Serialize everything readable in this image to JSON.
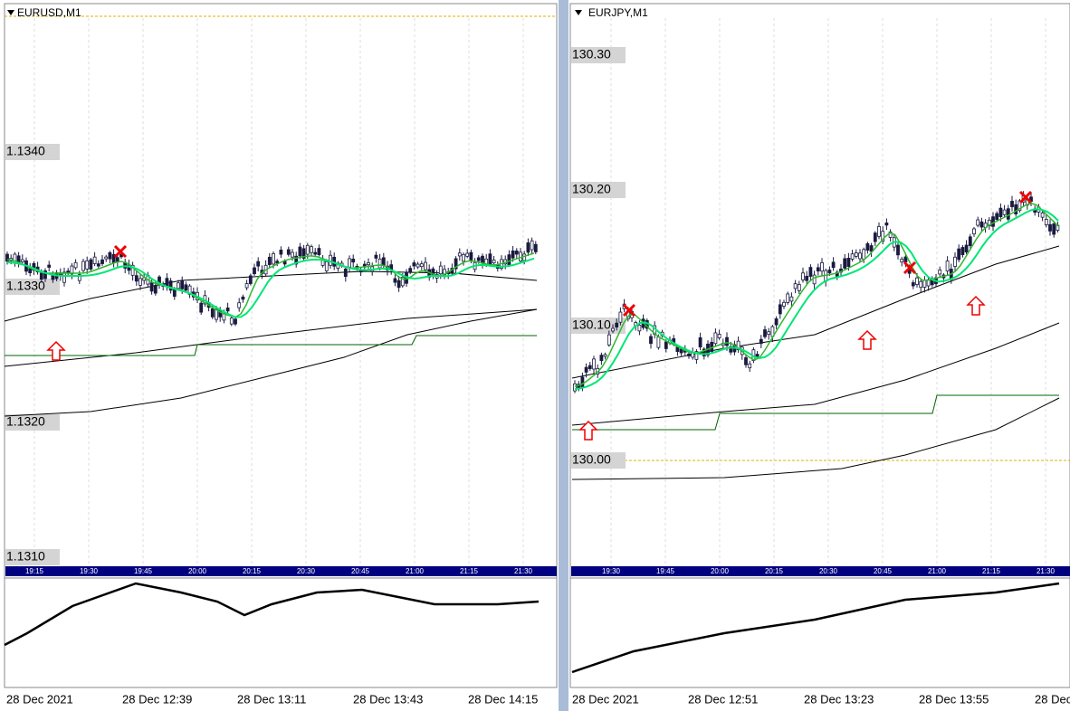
{
  "panels": [
    {
      "symbol": "EURUSD,M1",
      "price_labels": [
        "1.1340",
        "1.1330",
        "1.1320",
        "1.1310"
      ],
      "time_labels": [
        "19:15",
        "19:30",
        "19:45",
        "20:00",
        "20:15",
        "20:30",
        "20:45",
        "21:00",
        "21:15",
        "21:30"
      ],
      "date_labels": [
        "28 Dec 2021",
        "28 Dec 12:39",
        "28 Dec 13:11",
        "28 Dec 13:43",
        "28 Dec 14:15"
      ]
    },
    {
      "symbol": "EURJPY,M1",
      "price_labels": [
        "130.30",
        "130.20",
        "130.10",
        "130.00"
      ],
      "time_labels": [
        "19:30",
        "19:45",
        "20:00",
        "20:15",
        "20:30",
        "20:45",
        "21:00",
        "21:15",
        "21:30"
      ],
      "date_labels": [
        "28 Dec 2021",
        "28 Dec 12:51",
        "28 Dec 13:23",
        "28 Dec 13:55",
        "28 Dec"
      ]
    }
  ]
}
